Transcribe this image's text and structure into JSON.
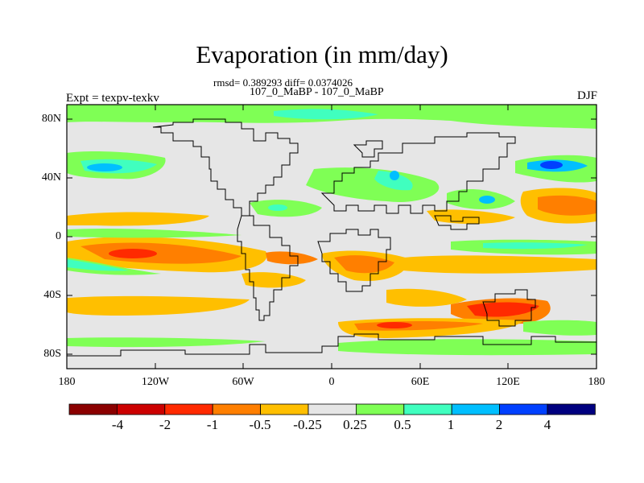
{
  "title": "Evaporation (in mm/day)",
  "stats": "rmsd= 0.389293 diff= 0.0374026",
  "comparison": "107_0_MaBP - 107_0_MaBP",
  "experiment": "Expt = texpv-texkv",
  "season": "DJF",
  "lat_labels": [
    "80N",
    "40N",
    "0",
    "40S",
    "80S"
  ],
  "lon_labels": [
    "180",
    "120W",
    "60W",
    "0",
    "60E",
    "120E",
    "180"
  ],
  "colorbar": {
    "labels": [
      "-4",
      "-2",
      "-1",
      "-0.5",
      "-0.25",
      "0.25",
      "0.5",
      "1",
      "2",
      "4"
    ],
    "colors": [
      "#8b0000",
      "#cc0000",
      "#ff2a00",
      "#ff7f00",
      "#ffbf00",
      "#e6e6e6",
      "#7fff55",
      "#40ffbf",
      "#00bfff",
      "#0040ff",
      "#000080"
    ]
  },
  "chart_data": {
    "type": "heatmap",
    "title": "Evaporation (in mm/day)",
    "variable": "evaporation difference",
    "units": "mm/day",
    "season": "DJF",
    "x_range": [
      -180,
      180
    ],
    "y_range": [
      -90,
      90
    ],
    "levels": [
      -4,
      -2,
      -1,
      -0.5,
      -0.25,
      0.25,
      0.5,
      1,
      2,
      4
    ],
    "rmsd": 0.389293,
    "diff": 0.0374026
  }
}
